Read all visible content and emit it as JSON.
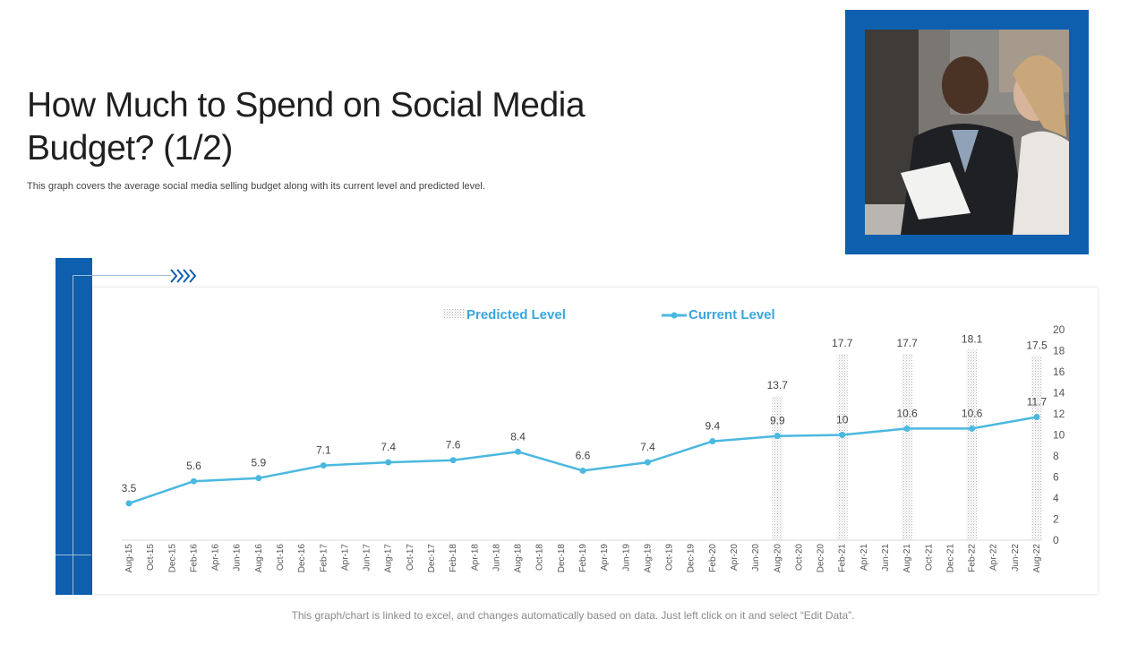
{
  "page": {
    "title": "How Much to Spend on Social Media Budget? (1/2)",
    "subtitle": "This graph covers the average social media selling budget along with its current level and predicted level.",
    "footer": "This graph/chart is linked to excel, and changes automatically based on data. Just left click on it and select “Edit Data”."
  },
  "colors": {
    "accent": "#0e5fae",
    "line": "#4bb8e0",
    "legend_text": "#3aa6dc"
  },
  "chart_data": {
    "type": "bar+line",
    "categories": [
      "Aug-15",
      "Oct-15",
      "Dec-15",
      "Feb-16",
      "Apr-16",
      "Jun-16",
      "Aug-16",
      "Oct-16",
      "Dec-16",
      "Feb-17",
      "Apr-17",
      "Jun-17",
      "Aug-17",
      "Oct-17",
      "Dec-17",
      "Feb-18",
      "Apr-18",
      "Jun-18",
      "Aug-18",
      "Oct-18",
      "Dec-18",
      "Feb-19",
      "Apr-19",
      "Jun-19",
      "Aug-19",
      "Oct-19",
      "Dec-19",
      "Feb-20",
      "Apr-20",
      "Jun-20",
      "Aug-20",
      "Oct-20",
      "Dec-20",
      "Feb-21",
      "Apr-21",
      "Jun-21",
      "Aug-21",
      "Oct-21",
      "Dec-21",
      "Feb-22",
      "Apr-22",
      "Jun-22",
      "Aug-22"
    ],
    "series": [
      {
        "name": "Predicted Level",
        "type": "bar",
        "values": [
          null,
          null,
          null,
          null,
          null,
          null,
          null,
          null,
          null,
          null,
          null,
          null,
          null,
          null,
          null,
          null,
          null,
          null,
          null,
          null,
          null,
          null,
          null,
          null,
          null,
          null,
          null,
          null,
          null,
          null,
          13.7,
          null,
          null,
          17.7,
          null,
          null,
          17.7,
          null,
          null,
          18.1,
          null,
          null,
          17.5
        ]
      },
      {
        "name": "Current Level",
        "type": "line",
        "values": [
          3.5,
          null,
          null,
          5.6,
          null,
          null,
          5.9,
          null,
          null,
          7.1,
          null,
          null,
          7.4,
          null,
          null,
          7.6,
          null,
          null,
          8.4,
          null,
          null,
          6.6,
          null,
          null,
          7.4,
          null,
          null,
          9.4,
          null,
          null,
          9.9,
          null,
          null,
          10,
          null,
          null,
          10.6,
          null,
          null,
          10.6,
          null,
          null,
          11.7
        ]
      }
    ],
    "y_axis": {
      "position": "right",
      "ticks": [
        0,
        2,
        4,
        6,
        8,
        10,
        12,
        14,
        16,
        18,
        20
      ]
    },
    "ylim": [
      0,
      20
    ],
    "legend": {
      "position": "top",
      "items": [
        "Predicted Level",
        "Current Level"
      ]
    },
    "grid": false
  }
}
